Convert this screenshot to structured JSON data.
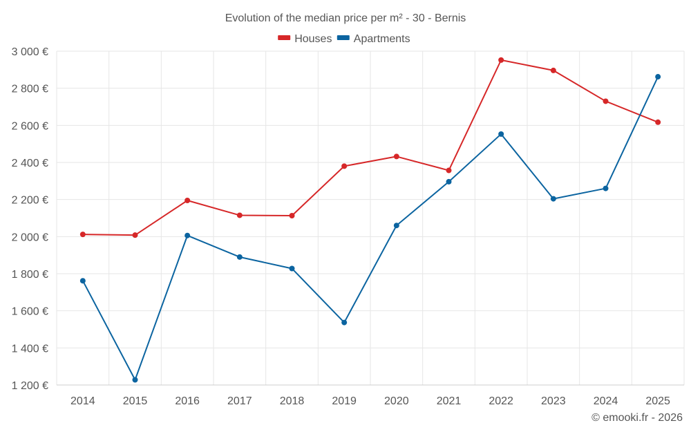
{
  "chart_data": {
    "type": "line",
    "title": "Evolution of the median price per m² - 30 - Bernis",
    "categories": [
      "2014",
      "2015",
      "2016",
      "2017",
      "2018",
      "2019",
      "2020",
      "2021",
      "2022",
      "2023",
      "2024",
      "2025"
    ],
    "series": [
      {
        "name": "Houses",
        "color": "#d62728",
        "values": [
          2012,
          2008,
          2195,
          2115,
          2113,
          2380,
          2432,
          2357,
          2952,
          2896,
          2730,
          2617
        ]
      },
      {
        "name": "Apartments",
        "color": "#0b64a0",
        "values": [
          1762,
          1228,
          2006,
          1890,
          1828,
          1537,
          2060,
          2296,
          2553,
          2204,
          2260,
          2862
        ]
      }
    ],
    "y_ticks": [
      1200,
      1400,
      1600,
      1800,
      2000,
      2200,
      2400,
      2600,
      2800,
      3000
    ],
    "y_tick_labels": [
      "1 200 €",
      "1 400 €",
      "1 600 €",
      "1 800 €",
      "2 000 €",
      "2 200 €",
      "2 400 €",
      "2 600 €",
      "2 800 €",
      "3 000 €"
    ],
    "ylim": [
      1200,
      3000
    ],
    "xlabel": "",
    "ylabel": "",
    "grid": true,
    "legend_position": "top-center"
  },
  "credit": "© emooki.fr - 2026"
}
